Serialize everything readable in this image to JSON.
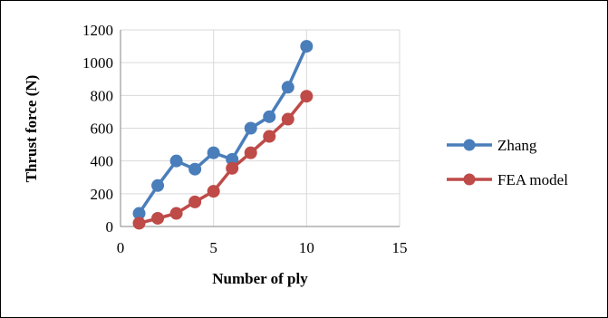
{
  "chart_data": {
    "type": "line",
    "title": "",
    "xlabel": "Number of ply",
    "ylabel": "Thrust force (N)",
    "xlim": [
      0,
      15
    ],
    "ylim": [
      0,
      1200
    ],
    "x_ticks": [
      0,
      5,
      10,
      15
    ],
    "y_ticks": [
      0,
      200,
      400,
      600,
      800,
      1000,
      1200
    ],
    "grid": "vertical and horizontal major gridlines",
    "legend_position": "right",
    "series": [
      {
        "name": "Zhang",
        "color": "#4a7ebb",
        "x": [
          1,
          2,
          3,
          4,
          5,
          6,
          7,
          8,
          9,
          10
        ],
        "values": [
          80,
          250,
          400,
          350,
          450,
          410,
          600,
          670,
          850,
          1100
        ]
      },
      {
        "name": "FEA model",
        "color": "#be4b48",
        "x": [
          1,
          2,
          3,
          4,
          5,
          6,
          7,
          8,
          9,
          10
        ],
        "values": [
          20,
          50,
          80,
          150,
          215,
          355,
          450,
          550,
          655,
          795
        ]
      }
    ]
  }
}
